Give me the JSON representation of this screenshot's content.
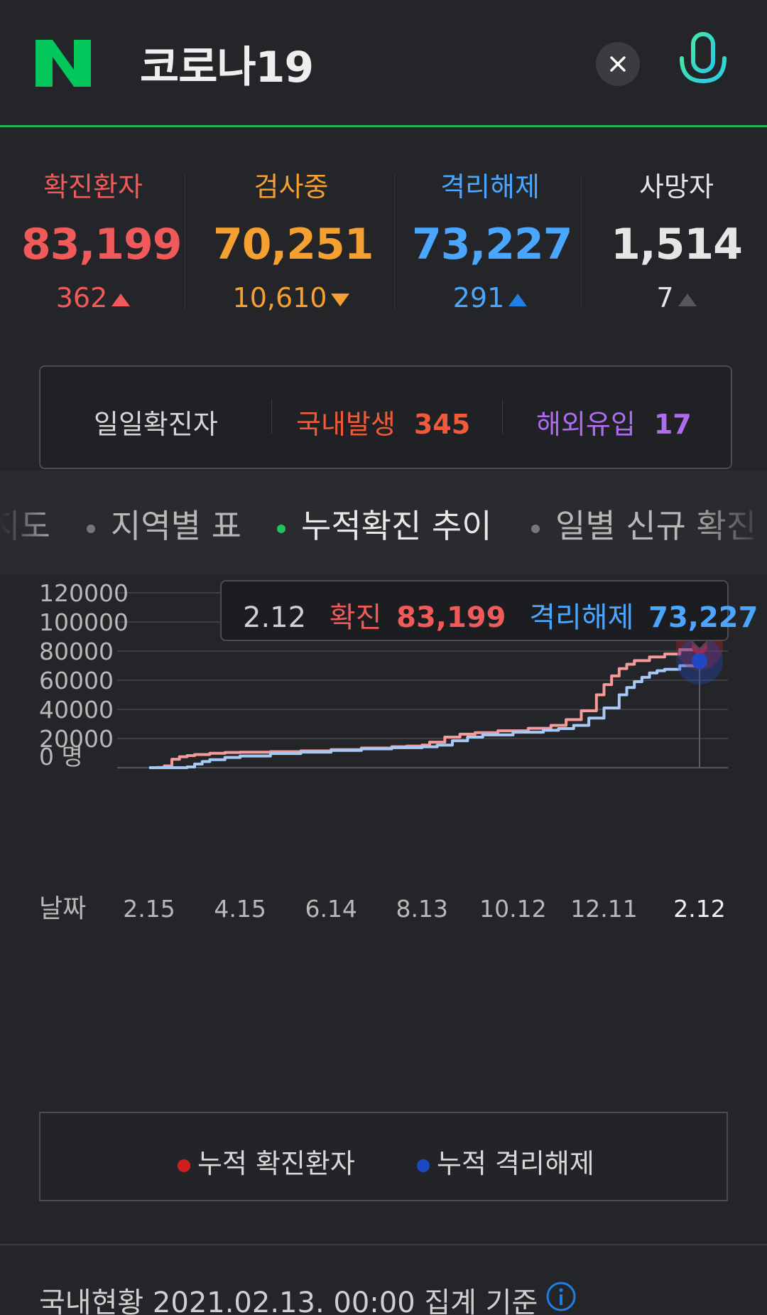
{
  "search": {
    "query": "코로나19"
  },
  "colors": {
    "naver_green": "#03c75a",
    "confirmed": "#f05a5a",
    "testing": "#f5a030",
    "released": "#4aa6ff",
    "deaths": "#e6e6e6",
    "domestic": "#f05a3a",
    "overseas": "#b06cf0",
    "tab_active_dot": "#1fc45e",
    "mic": "#3ee0c8"
  },
  "stats": [
    {
      "label": "확진환자",
      "value": "83,199",
      "delta": "362",
      "direction": "up"
    },
    {
      "label": "검사중",
      "value": "70,251",
      "delta": "10,610",
      "direction": "down"
    },
    {
      "label": "격리해제",
      "value": "73,227",
      "delta": "291",
      "direction": "up"
    },
    {
      "label": "사망자",
      "value": "1,514",
      "delta": "7",
      "direction": "up"
    }
  ],
  "daily": {
    "title": "일일확진자",
    "domestic_label": "국내발생",
    "domestic_value": "345",
    "overseas_label": "해외유입",
    "overseas_value": "17"
  },
  "tabs": [
    {
      "label": "지도",
      "active": false
    },
    {
      "label": "지역별 표",
      "active": false
    },
    {
      "label": "누적확진 추이",
      "active": true
    },
    {
      "label": "일별 신규 확진",
      "active": false
    }
  ],
  "tooltip": {
    "date": "2.12",
    "confirmed_label": "확진",
    "confirmed_value": "83,199",
    "released_label": "격리해제",
    "released_value": "73,227"
  },
  "chart_data": {
    "type": "line",
    "xlabel": "날짜",
    "x_ticks": [
      "2.15",
      "4.15",
      "6.14",
      "8.13",
      "10.12",
      "12.11",
      "2.12"
    ],
    "y_ticks": [
      "0 명",
      "20000",
      "40000",
      "60000",
      "80000",
      "100000",
      "120000"
    ],
    "ylim": [
      0,
      120000
    ],
    "grid": true,
    "x_tick_positions": [
      0,
      60,
      120,
      180,
      240,
      300,
      363
    ],
    "series": [
      {
        "name": "누적 확진환자",
        "color": "#f59a9a",
        "x": [
          0,
          5,
          10,
          15,
          20,
          25,
          30,
          40,
          50,
          60,
          80,
          100,
          120,
          140,
          160,
          170,
          180,
          185,
          195,
          205,
          215,
          230,
          250,
          265,
          275,
          285,
          295,
          300,
          305,
          310,
          315,
          320,
          330,
          340,
          350,
          360,
          363
        ],
        "values": [
          0,
          100,
          1200,
          5800,
          7500,
          8300,
          9000,
          9900,
          10400,
          10600,
          11000,
          11500,
          12400,
          13500,
          14400,
          14800,
          15500,
          17500,
          21000,
          23000,
          24000,
          25300,
          27000,
          29000,
          33000,
          39000,
          50000,
          57000,
          63000,
          68000,
          71000,
          73500,
          76000,
          78000,
          81000,
          82800,
          83199
        ]
      },
      {
        "name": "누적 격리해제",
        "color": "#a8c8f5",
        "x": [
          0,
          10,
          20,
          25,
          30,
          35,
          40,
          50,
          60,
          80,
          100,
          120,
          140,
          160,
          180,
          190,
          200,
          210,
          220,
          240,
          260,
          270,
          280,
          290,
          300,
          310,
          315,
          320,
          325,
          330,
          335,
          340,
          350,
          360,
          363
        ],
        "values": [
          0,
          0,
          0,
          500,
          2500,
          4200,
          5500,
          7000,
          8000,
          9700,
          10700,
          11800,
          12900,
          13700,
          14300,
          15500,
          18500,
          21000,
          22500,
          24300,
          25700,
          26800,
          29000,
          34000,
          41000,
          50000,
          55000,
          59000,
          62000,
          65000,
          66500,
          67500,
          70000,
          72500,
          73227
        ]
      }
    ]
  },
  "legend": [
    {
      "label": "누적 확진환자",
      "color": "#cc1f1f"
    },
    {
      "label": "누적 격리해제",
      "color": "#1f49c4"
    }
  ],
  "footer": {
    "text": "국내현황 2021.02.13. 00:00 집계 기준"
  }
}
